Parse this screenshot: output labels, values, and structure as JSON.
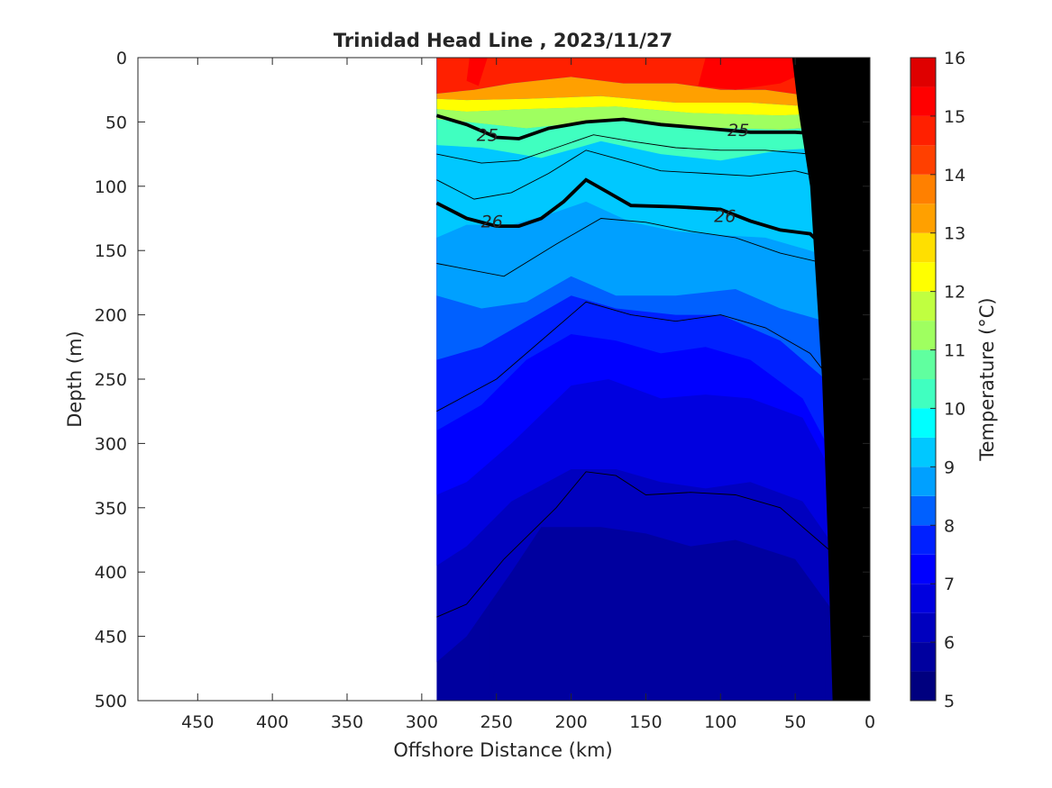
{
  "chart_data": {
    "type": "heatmap",
    "title": "Trinidad Head Line , 2023/11/27",
    "xlabel": "Offshore Distance (km)",
    "ylabel": "Depth (m)",
    "colorbar_label": "Temperature (°C)",
    "xlim": [
      490,
      0
    ],
    "ylim": [
      500,
      0
    ],
    "x_ticks": [
      450,
      400,
      350,
      300,
      250,
      200,
      150,
      100,
      50,
      0
    ],
    "y_ticks": [
      0,
      50,
      100,
      150,
      200,
      250,
      300,
      350,
      400,
      450,
      500
    ],
    "colorbar_ticks": [
      5,
      6,
      7,
      8,
      9,
      10,
      11,
      12,
      13,
      14,
      15,
      16
    ],
    "colorbar_range": [
      5,
      16
    ],
    "contour_levels": [
      {
        "value": 5,
        "color": "#00007f"
      },
      {
        "value": 5.5,
        "color": "#00009f"
      },
      {
        "value": 6,
        "color": "#0000bf"
      },
      {
        "value": 6.5,
        "color": "#0000df"
      },
      {
        "value": 7,
        "color": "#0000ff"
      },
      {
        "value": 7.5,
        "color": "#0020ff"
      },
      {
        "value": 8,
        "color": "#0060ff"
      },
      {
        "value": 8.5,
        "color": "#00a0ff"
      },
      {
        "value": 9,
        "color": "#00c8ff"
      },
      {
        "value": 9.5,
        "color": "#00ffff"
      },
      {
        "value": 10,
        "color": "#40ffc0"
      },
      {
        "value": 10.5,
        "color": "#60ff9f"
      },
      {
        "value": 11,
        "color": "#9fff60"
      },
      {
        "value": 11.5,
        "color": "#c0ff40"
      },
      {
        "value": 12,
        "color": "#ffff00"
      },
      {
        "value": 12.5,
        "color": "#ffdf00"
      },
      {
        "value": 13,
        "color": "#ffa000"
      },
      {
        "value": 13.5,
        "color": "#ff8000"
      },
      {
        "value": 14,
        "color": "#ff4000"
      },
      {
        "value": 14.5,
        "color": "#ff2000"
      },
      {
        "value": 15,
        "color": "#ff0000"
      },
      {
        "value": 15.5,
        "color": "#df0000"
      },
      {
        "value": 16,
        "color": "#7f0000"
      }
    ],
    "temperature_isotherms": [
      {
        "value": 9,
        "points": [
          [
            290,
            140
          ],
          [
            270,
            130
          ],
          [
            240,
            130
          ],
          [
            215,
            122
          ],
          [
            190,
            112
          ],
          [
            160,
            128
          ],
          [
            130,
            135
          ],
          [
            100,
            138
          ],
          [
            70,
            140
          ],
          [
            40,
            150
          ],
          [
            15,
            160
          ]
        ]
      },
      {
        "value": 8.5,
        "points": [
          [
            290,
            185
          ],
          [
            260,
            195
          ],
          [
            230,
            190
          ],
          [
            200,
            170
          ],
          [
            170,
            185
          ],
          [
            130,
            185
          ],
          [
            90,
            180
          ],
          [
            60,
            195
          ],
          [
            30,
            205
          ],
          [
            12,
            230
          ]
        ]
      },
      {
        "value": 8,
        "points": [
          [
            290,
            235
          ],
          [
            260,
            225
          ],
          [
            230,
            205
          ],
          [
            200,
            185
          ],
          [
            170,
            195
          ],
          [
            130,
            200
          ],
          [
            100,
            200
          ],
          [
            60,
            220
          ],
          [
            30,
            250
          ],
          [
            15,
            280
          ]
        ]
      },
      {
        "value": 7.5,
        "points": [
          [
            290,
            290
          ],
          [
            260,
            270
          ],
          [
            230,
            235
          ],
          [
            200,
            215
          ],
          [
            170,
            220
          ],
          [
            140,
            230
          ],
          [
            110,
            225
          ],
          [
            80,
            235
          ],
          [
            45,
            265
          ],
          [
            20,
            320
          ]
        ]
      },
      {
        "value": 7,
        "points": [
          [
            290,
            340
          ],
          [
            270,
            330
          ],
          [
            240,
            300
          ],
          [
            200,
            255
          ],
          [
            175,
            250
          ],
          [
            140,
            265
          ],
          [
            110,
            262
          ],
          [
            80,
            265
          ],
          [
            45,
            280
          ],
          [
            22,
            330
          ]
        ]
      },
      {
        "value": 6.5,
        "points": [
          [
            290,
            395
          ],
          [
            270,
            380
          ],
          [
            240,
            345
          ],
          [
            200,
            320
          ],
          [
            170,
            320
          ],
          [
            140,
            330
          ],
          [
            110,
            335
          ],
          [
            80,
            330
          ],
          [
            45,
            345
          ],
          [
            24,
            380
          ]
        ]
      },
      {
        "value": 6,
        "points": [
          [
            290,
            470
          ],
          [
            270,
            450
          ],
          [
            240,
            400
          ],
          [
            220,
            365
          ],
          [
            180,
            365
          ],
          [
            150,
            370
          ],
          [
            120,
            380
          ],
          [
            90,
            375
          ],
          [
            50,
            390
          ],
          [
            25,
            430
          ]
        ]
      },
      {
        "value": 5.5,
        "points": [
          [
            255,
            500
          ],
          [
            250,
            470
          ],
          [
            240,
            440
          ],
          [
            225,
            430
          ],
          [
            215,
            460
          ],
          [
            200,
            495
          ],
          [
            185,
            480
          ],
          [
            170,
            470
          ],
          [
            150,
            475
          ],
          [
            120,
            490
          ],
          [
            100,
            490
          ],
          [
            75,
            470
          ],
          [
            50,
            475
          ],
          [
            30,
            500
          ]
        ]
      }
    ],
    "surface_layers": [
      {
        "value": 14.5,
        "points": [
          [
            290,
            0
          ],
          [
            5,
            0
          ],
          [
            8,
            20
          ],
          [
            20,
            25
          ],
          [
            40,
            30
          ],
          [
            70,
            25
          ],
          [
            100,
            25
          ],
          [
            130,
            20
          ],
          [
            165,
            20
          ],
          [
            200,
            15
          ],
          [
            240,
            20
          ],
          [
            265,
            25
          ],
          [
            290,
            28
          ]
        ]
      },
      {
        "value": 13,
        "points": [
          [
            290,
            28
          ],
          [
            265,
            25
          ],
          [
            240,
            20
          ],
          [
            200,
            15
          ],
          [
            165,
            20
          ],
          [
            130,
            20
          ],
          [
            100,
            25
          ],
          [
            70,
            25
          ],
          [
            40,
            30
          ],
          [
            20,
            25
          ],
          [
            8,
            20
          ],
          [
            8,
            32
          ],
          [
            40,
            38
          ],
          [
            80,
            35
          ],
          [
            130,
            35
          ],
          [
            180,
            30
          ],
          [
            230,
            32
          ],
          [
            270,
            33
          ],
          [
            290,
            32
          ]
        ]
      },
      {
        "value": 12,
        "points": [
          [
            290,
            32
          ],
          [
            270,
            33
          ],
          [
            230,
            32
          ],
          [
            180,
            30
          ],
          [
            130,
            35
          ],
          [
            80,
            35
          ],
          [
            40,
            38
          ],
          [
            8,
            32
          ],
          [
            8,
            42
          ],
          [
            60,
            45
          ],
          [
            120,
            43
          ],
          [
            170,
            38
          ],
          [
            230,
            40
          ],
          [
            270,
            42
          ],
          [
            290,
            40
          ]
        ]
      },
      {
        "value": 11,
        "points": [
          [
            290,
            40
          ],
          [
            270,
            42
          ],
          [
            230,
            40
          ],
          [
            170,
            38
          ],
          [
            120,
            43
          ],
          [
            60,
            45
          ],
          [
            8,
            42
          ],
          [
            8,
            52
          ],
          [
            60,
            56
          ],
          [
            120,
            54
          ],
          [
            170,
            48
          ],
          [
            230,
            55
          ],
          [
            270,
            50
          ],
          [
            290,
            48
          ]
        ]
      },
      {
        "value": 10,
        "points": [
          [
            290,
            48
          ],
          [
            270,
            50
          ],
          [
            230,
            55
          ],
          [
            170,
            48
          ],
          [
            120,
            54
          ],
          [
            60,
            56
          ],
          [
            8,
            52
          ],
          [
            8,
            78
          ],
          [
            30,
            70
          ],
          [
            60,
            72
          ],
          [
            100,
            80
          ],
          [
            140,
            75
          ],
          [
            180,
            65
          ],
          [
            220,
            78
          ],
          [
            260,
            70
          ],
          [
            290,
            68
          ]
        ]
      }
    ],
    "sigma_contours": [
      {
        "value": 25,
        "points": [
          [
            290,
            45
          ],
          [
            270,
            52
          ],
          [
            250,
            62
          ],
          [
            235,
            63
          ],
          [
            215,
            55
          ],
          [
            190,
            50
          ],
          [
            165,
            48
          ],
          [
            140,
            52
          ],
          [
            110,
            55
          ],
          [
            80,
            58
          ],
          [
            50,
            58
          ],
          [
            25,
            60
          ],
          [
            10,
            53
          ]
        ]
      },
      {
        "value": 26,
        "points": [
          [
            290,
            113
          ],
          [
            270,
            125
          ],
          [
            250,
            131
          ],
          [
            235,
            131
          ],
          [
            220,
            125
          ],
          [
            205,
            112
          ],
          [
            190,
            95
          ],
          [
            175,
            105
          ],
          [
            160,
            115
          ],
          [
            130,
            116
          ],
          [
            100,
            118
          ],
          [
            80,
            127
          ],
          [
            60,
            134
          ],
          [
            40,
            137
          ],
          [
            28,
            150
          ],
          [
            18,
            156
          ],
          [
            12,
            152
          ]
        ]
      }
    ],
    "thin_isopycnals": [
      {
        "points": [
          [
            290,
            160
          ],
          [
            245,
            170
          ],
          [
            210,
            145
          ],
          [
            180,
            125
          ],
          [
            150,
            128
          ],
          [
            120,
            135
          ],
          [
            90,
            140
          ],
          [
            60,
            152
          ],
          [
            30,
            160
          ],
          [
            15,
            175
          ]
        ]
      },
      {
        "points": [
          [
            290,
            275
          ],
          [
            250,
            250
          ],
          [
            215,
            215
          ],
          [
            190,
            190
          ],
          [
            160,
            200
          ],
          [
            130,
            205
          ],
          [
            100,
            200
          ],
          [
            70,
            210
          ],
          [
            40,
            230
          ],
          [
            20,
            260
          ]
        ]
      },
      {
        "points": [
          [
            290,
            435
          ],
          [
            270,
            425
          ],
          [
            245,
            390
          ],
          [
            210,
            350
          ],
          [
            190,
            322
          ],
          [
            170,
            325
          ],
          [
            150,
            340
          ],
          [
            120,
            338
          ],
          [
            90,
            340
          ],
          [
            60,
            350
          ],
          [
            35,
            375
          ],
          [
            22,
            388
          ]
        ]
      },
      {
        "points": [
          [
            290,
            95
          ],
          [
            265,
            110
          ],
          [
            240,
            105
          ],
          [
            215,
            90
          ],
          [
            190,
            72
          ],
          [
            165,
            80
          ],
          [
            140,
            88
          ],
          [
            110,
            90
          ],
          [
            80,
            92
          ],
          [
            50,
            88
          ],
          [
            25,
            95
          ],
          [
            12,
            100
          ]
        ]
      },
      {
        "points": [
          [
            290,
            75
          ],
          [
            260,
            82
          ],
          [
            235,
            80
          ],
          [
            210,
            70
          ],
          [
            185,
            60
          ],
          [
            160,
            65
          ],
          [
            130,
            70
          ],
          [
            100,
            72
          ],
          [
            70,
            72
          ],
          [
            40,
            75
          ],
          [
            12,
            70
          ]
        ]
      }
    ],
    "shelf_outline": [
      [
        0,
        0
      ],
      [
        0,
        500
      ],
      [
        25,
        500
      ],
      [
        28,
        380
      ],
      [
        32,
        250
      ],
      [
        40,
        100
      ],
      [
        48,
        40
      ],
      [
        52,
        0
      ]
    ],
    "sigma_labels": [
      {
        "text": "25",
        "x": 256,
        "y": 60
      },
      {
        "text": "25",
        "x": 88,
        "y": 56
      },
      {
        "text": "26",
        "x": 253,
        "y": 127
      },
      {
        "text": "26",
        "x": 97,
        "y": 123
      }
    ],
    "data_coverage_x": [
      290,
      0
    ],
    "grid": false,
    "colorbar_placement": "right"
  }
}
